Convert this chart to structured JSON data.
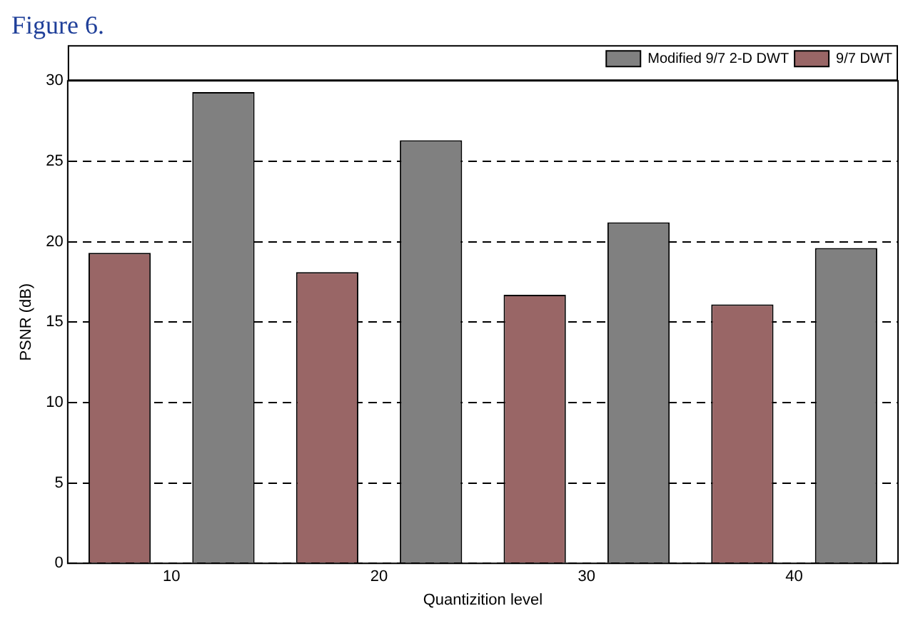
{
  "chart_data": {
    "type": "bar",
    "title": "Figure 6.",
    "xlabel": "Quantizition level",
    "ylabel": "PSNR (dB)",
    "categories": [
      "10",
      "20",
      "30",
      "40"
    ],
    "series": [
      {
        "name": "9/7 DWT",
        "color": "#996666",
        "values": [
          19.3,
          18.1,
          16.7,
          16.1
        ]
      },
      {
        "name": "Modified 9/7 2-D DWT",
        "color": "#808080",
        "values": [
          29.3,
          26.3,
          21.2,
          19.6
        ]
      }
    ],
    "ylim": [
      0,
      30
    ],
    "yticks": [
      0,
      5,
      10,
      15,
      20,
      25,
      30
    ],
    "grid": "y",
    "legend": "top right"
  }
}
